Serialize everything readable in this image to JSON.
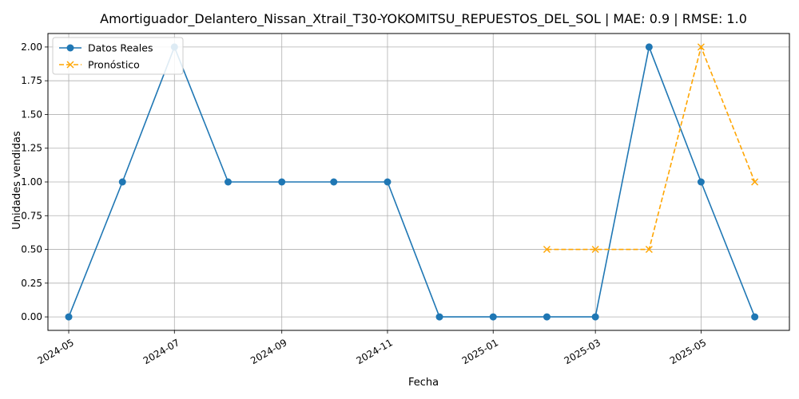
{
  "chart_data": {
    "type": "line",
    "title": "Amortiguador_Delantero_Nissan_Xtrail_T30-YOKOMITSU_REPUESTOS_DEL_SOL | MAE: 0.9 | RMSE: 1.0",
    "xlabel": "Fecha",
    "ylabel": "Unidades vendidas",
    "ylim": [
      -0.1,
      2.1
    ],
    "xlim": [
      "2024-04-19",
      "2025-06-21"
    ],
    "grid": true,
    "legend_position": "top-left",
    "yticks": [
      0.0,
      0.25,
      0.5,
      0.75,
      1.0,
      1.25,
      1.5,
      1.75,
      2.0
    ],
    "ytick_labels": [
      "0.00",
      "0.25",
      "0.50",
      "0.75",
      "1.00",
      "1.25",
      "1.50",
      "1.75",
      "2.00"
    ],
    "xticks": [
      "2024-05-01",
      "2024-07-01",
      "2024-09-01",
      "2024-11-01",
      "2025-01-01",
      "2025-03-01",
      "2025-05-01"
    ],
    "xtick_labels": [
      "2024-05",
      "2024-07",
      "2024-09",
      "2024-11",
      "2025-01",
      "2025-03",
      "2025-05"
    ],
    "series": [
      {
        "name": "Datos Reales",
        "color": "#1f77b4",
        "marker": "circle",
        "linestyle": "solid",
        "x": [
          "2024-05-01",
          "2024-06-01",
          "2024-07-01",
          "2024-08-01",
          "2024-09-01",
          "2024-10-01",
          "2024-11-01",
          "2024-12-01",
          "2025-01-01",
          "2025-02-01",
          "2025-03-01",
          "2025-04-01",
          "2025-05-01",
          "2025-06-01"
        ],
        "values": [
          0,
          1,
          2,
          1,
          1,
          1,
          1,
          0,
          0,
          0,
          0,
          2,
          1,
          0
        ]
      },
      {
        "name": "Pronóstico",
        "color": "#ffa500",
        "marker": "x",
        "linestyle": "dashed",
        "x": [
          "2025-02-01",
          "2025-03-01",
          "2025-04-01",
          "2025-05-01",
          "2025-06-01"
        ],
        "values": [
          0.5,
          0.5,
          0.5,
          2.0,
          1.0
        ]
      }
    ]
  }
}
